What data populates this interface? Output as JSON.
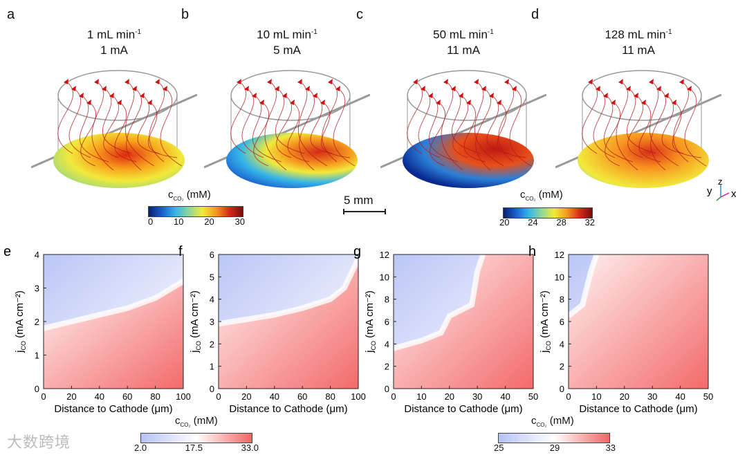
{
  "panels_top": [
    {
      "letter": "a",
      "flow": "1 mL min",
      "flow_exp": "-1",
      "current": "1 mA"
    },
    {
      "letter": "b",
      "flow": "10 mL min",
      "flow_exp": "-1",
      "current": "5 mA"
    },
    {
      "letter": "c",
      "flow": "50 mL min",
      "flow_exp": "-1",
      "current": "11 mA"
    },
    {
      "letter": "d",
      "flow": "128 mL min",
      "flow_exp": "-1",
      "current": "11 mA"
    }
  ],
  "colorbar_top_left": {
    "label": "c",
    "sub": "CO₂",
    "unit": " (mM)",
    "ticks": [
      "0",
      "10",
      "20",
      "30"
    ]
  },
  "colorbar_top_right": {
    "label": "c",
    "sub": "CO₂",
    "unit": " (mM)",
    "ticks": [
      "20",
      "24",
      "28",
      "32"
    ]
  },
  "scale_bar": "5 mm",
  "axes_triad": {
    "y": "y",
    "z": "z",
    "x": "x"
  },
  "colorbar_bottom_left": {
    "label": "c",
    "sub": "CO₂",
    "unit": " (mM)",
    "ticks": [
      "2.0",
      "17.5",
      "33.0"
    ]
  },
  "colorbar_bottom_right": {
    "label": "c",
    "sub": "CO₂",
    "unit": " (mM)",
    "ticks": [
      "25",
      "29",
      "33"
    ]
  },
  "watermark": "大数跨境",
  "chart_data": [
    {
      "type": "heatmap",
      "letter": "e",
      "xlabel": "Distance to Cathode (μm)",
      "ylabel": "j",
      "ylabel_sub": "CO",
      "ylabel_unit": " (mA cm⁻²)",
      "xlim": [
        0,
        100
      ],
      "ylim": [
        0,
        4
      ],
      "xticks": [
        0,
        20,
        40,
        60,
        80,
        100
      ],
      "yticks": [
        0,
        1,
        2,
        3,
        4
      ],
      "white_contour": [
        [
          0,
          1.8
        ],
        [
          20,
          2.0
        ],
        [
          40,
          2.2
        ],
        [
          60,
          2.4
        ],
        [
          80,
          2.7
        ],
        [
          100,
          3.2
        ]
      ]
    },
    {
      "type": "heatmap",
      "letter": "f",
      "xlabel": "Distance to Cathode (μm)",
      "ylabel": "j",
      "ylabel_sub": "CO",
      "ylabel_unit": " (mA cm⁻²)",
      "xlim": [
        0,
        100
      ],
      "ylim": [
        0,
        6
      ],
      "xticks": [
        0,
        20,
        40,
        60,
        80,
        100
      ],
      "yticks": [
        0,
        1,
        2,
        3,
        4,
        5,
        6
      ],
      "white_contour": [
        [
          0,
          2.9
        ],
        [
          20,
          3.1
        ],
        [
          40,
          3.3
        ],
        [
          60,
          3.6
        ],
        [
          80,
          4.0
        ],
        [
          90,
          4.5
        ],
        [
          100,
          5.8
        ]
      ]
    },
    {
      "type": "heatmap",
      "letter": "g",
      "xlabel": "Distance to Cathode (μm)",
      "ylabel": "j",
      "ylabel_sub": "CO",
      "ylabel_unit": " (mA cm⁻²)",
      "xlim": [
        0,
        50
      ],
      "ylim": [
        0,
        12
      ],
      "xticks": [
        0,
        10,
        20,
        30,
        40,
        50
      ],
      "yticks": [
        0,
        2,
        4,
        6,
        8,
        10,
        12
      ],
      "white_contour": [
        [
          0,
          3.6
        ],
        [
          10,
          4.3
        ],
        [
          17,
          5
        ],
        [
          20,
          6.5
        ],
        [
          28,
          7.5
        ],
        [
          30,
          10.5
        ],
        [
          32,
          12
        ]
      ]
    },
    {
      "type": "heatmap",
      "letter": "h",
      "xlabel": "Distance to Cathode (μm)",
      "ylabel": "j",
      "ylabel_sub": "CO",
      "ylabel_unit": " (mA cm⁻²)",
      "xlim": [
        0,
        50
      ],
      "ylim": [
        0,
        12
      ],
      "xticks": [
        0,
        10,
        20,
        30,
        40,
        50
      ],
      "yticks": [
        0,
        2,
        4,
        6,
        8,
        10,
        12
      ],
      "white_contour": [
        [
          0,
          6.5
        ],
        [
          5,
          7.5
        ],
        [
          8,
          10.5
        ],
        [
          10,
          12
        ]
      ]
    }
  ]
}
